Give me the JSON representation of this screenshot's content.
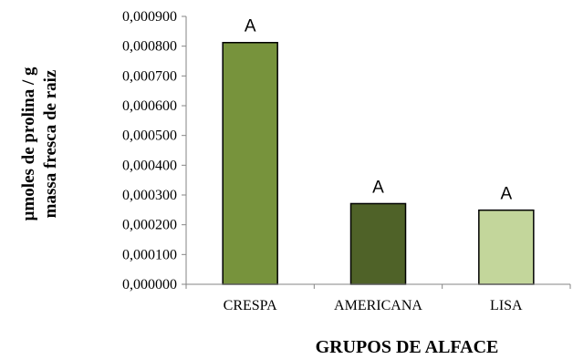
{
  "chart_data": {
    "type": "bar",
    "categories": [
      "CRESPA",
      "AMERICANA",
      "LISA"
    ],
    "values": [
      0.000812,
      0.000271,
      0.000249
    ],
    "bar_colors": [
      "#77933c",
      "#4f6228",
      "#c3d69b"
    ],
    "annotations": [
      "A",
      "A",
      "A"
    ],
    "ylim": [
      0,
      0.0009
    ],
    "ytick_labels": [
      "0,000000",
      "0,000100",
      "0,000200",
      "0,000300",
      "0,000400",
      "0,000500",
      "0,000600",
      "0,000700",
      "0,000800",
      "0,000900"
    ],
    "ylabel_line1": "µmoles de prolina / g",
    "ylabel_line2": "massa fresca de raiz",
    "xlabel": "GRUPOS DE ALFACE",
    "grid": false,
    "legend": "none"
  }
}
